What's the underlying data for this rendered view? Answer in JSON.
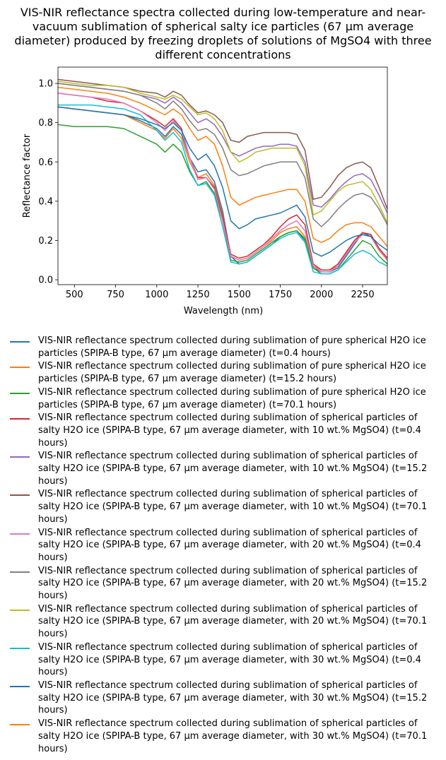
{
  "chart_data": {
    "type": "line",
    "title": "VIS-NIR reflectance spectra collected during low-temperature and near-vacuum sublimation of spherical salty ice particles (67 µm average diameter) produced by freezing droplets of solutions of MgSO4 with three different concentrations",
    "xlabel": "Wavelength (nm)",
    "ylabel": "Reflectance factor",
    "xlim": [
      400,
      2400
    ],
    "ylim": [
      -0.025,
      1.083
    ],
    "xticks": [
      500,
      750,
      1000,
      1250,
      1500,
      1750,
      2000,
      2250
    ],
    "yticks": [
      {
        "value": 0,
        "label": "0.0"
      },
      0.2,
      0.4,
      0.6,
      0.8,
      {
        "value": 1,
        "label": "1.0"
      }
    ],
    "x": [
      400,
      500,
      600,
      700,
      800,
      900,
      1000,
      1050,
      1100,
      1150,
      1200,
      1250,
      1300,
      1350,
      1400,
      1450,
      1500,
      1550,
      1600,
      1650,
      1700,
      1750,
      1800,
      1850,
      1900,
      1950,
      2000,
      2050,
      2100,
      2150,
      2200,
      2250,
      2300,
      2350,
      2400
    ],
    "series": [
      {
        "name": "VIS-NIR reflectance spectrum collected during sublimation of pure spherical H2O ice particles (SPIPA-B type, 67 µm average diameter) (t=0.4 hours)",
        "color": "#1f77b4",
        "values": [
          0.88,
          0.87,
          0.86,
          0.85,
          0.84,
          0.81,
          0.77,
          0.73,
          0.78,
          0.74,
          0.62,
          0.55,
          0.56,
          0.5,
          0.35,
          0.12,
          0.08,
          0.09,
          0.12,
          0.15,
          0.18,
          0.22,
          0.24,
          0.25,
          0.2,
          0.06,
          0.04,
          0.04,
          0.06,
          0.12,
          0.18,
          0.24,
          0.22,
          0.15,
          0.1
        ]
      },
      {
        "name": "VIS-NIR reflectance spectrum collected during sublimation of pure spherical H2O ice particles (SPIPA-B type, 67 µm average diameter) (t=15.2 hours)",
        "color": "#ff7f0e",
        "values": [
          0.88,
          0.87,
          0.86,
          0.85,
          0.84,
          0.8,
          0.76,
          0.72,
          0.77,
          0.72,
          0.6,
          0.52,
          0.54,
          0.48,
          0.33,
          0.12,
          0.1,
          0.11,
          0.14,
          0.17,
          0.2,
          0.24,
          0.26,
          0.27,
          0.22,
          0.07,
          0.05,
          0.05,
          0.07,
          0.13,
          0.19,
          0.24,
          0.23,
          0.16,
          0.11
        ]
      },
      {
        "name": "VIS-NIR reflectance spectrum collected during sublimation of pure spherical H2O ice particles (SPIPA-B type, 67 µm average diameter) (t=70.1 hours)",
        "color": "#2ca02c",
        "values": [
          0.79,
          0.78,
          0.78,
          0.78,
          0.77,
          0.73,
          0.69,
          0.65,
          0.69,
          0.65,
          0.55,
          0.48,
          0.5,
          0.44,
          0.3,
          0.1,
          0.09,
          0.1,
          0.13,
          0.16,
          0.19,
          0.22,
          0.24,
          0.25,
          0.21,
          0.06,
          0.03,
          0.03,
          0.05,
          0.1,
          0.15,
          0.2,
          0.18,
          0.12,
          0.08
        ]
      },
      {
        "name": "VIS-NIR reflectance spectrum collected during sublimation of spherical particles of salty H2O ice (SPIPA-B type, 67 µm average diameter, with 10 wt.% MgSO4) (t=0.4 hours)",
        "color": "#d62728",
        "values": [
          0.95,
          0.94,
          0.93,
          0.91,
          0.9,
          0.86,
          0.81,
          0.78,
          0.82,
          0.77,
          0.62,
          0.52,
          0.52,
          0.47,
          0.32,
          0.13,
          0.11,
          0.12,
          0.15,
          0.18,
          0.22,
          0.27,
          0.31,
          0.33,
          0.28,
          0.08,
          0.05,
          0.05,
          0.08,
          0.14,
          0.2,
          0.24,
          0.23,
          0.16,
          0.11
        ]
      },
      {
        "name": "VIS-NIR reflectance spectrum collected during sublimation of spherical particles of salty H2O ice (SPIPA-B type, 67 µm average diameter, with 10 wt.% MgSO4) (t=15.2 hours)",
        "color": "#9467bd",
        "values": [
          1.0,
          0.99,
          0.98,
          0.97,
          0.96,
          0.94,
          0.92,
          0.9,
          0.93,
          0.9,
          0.85,
          0.8,
          0.82,
          0.79,
          0.73,
          0.65,
          0.63,
          0.65,
          0.67,
          0.68,
          0.68,
          0.69,
          0.69,
          0.68,
          0.6,
          0.38,
          0.37,
          0.41,
          0.46,
          0.5,
          0.53,
          0.54,
          0.51,
          0.43,
          0.34
        ]
      },
      {
        "name": "VIS-NIR reflectance spectrum collected during sublimation of spherical particles of salty H2O ice (SPIPA-B type, 67 µm average diameter, with 10 wt.% MgSO4) (t=70.1 hours)",
        "color": "#8c564b",
        "values": [
          1.02,
          1.01,
          1.0,
          0.99,
          0.98,
          0.96,
          0.95,
          0.93,
          0.96,
          0.94,
          0.89,
          0.85,
          0.86,
          0.84,
          0.8,
          0.71,
          0.7,
          0.73,
          0.74,
          0.75,
          0.75,
          0.75,
          0.75,
          0.74,
          0.66,
          0.41,
          0.42,
          0.47,
          0.53,
          0.57,
          0.59,
          0.6,
          0.57,
          0.47,
          0.36
        ]
      },
      {
        "name": "VIS-NIR reflectance spectrum collected during sublimation of spherical particles of salty H2O ice (SPIPA-B type, 67 µm average diameter, with 20 wt.% MgSO4) (t=0.4 hours)",
        "color": "#e377c2",
        "values": [
          0.95,
          0.94,
          0.93,
          0.92,
          0.9,
          0.86,
          0.8,
          0.76,
          0.81,
          0.76,
          0.62,
          0.51,
          0.52,
          0.46,
          0.3,
          0.12,
          0.1,
          0.11,
          0.14,
          0.17,
          0.21,
          0.25,
          0.28,
          0.3,
          0.25,
          0.07,
          0.04,
          0.04,
          0.07,
          0.13,
          0.19,
          0.23,
          0.22,
          0.15,
          0.1
        ]
      },
      {
        "name": "VIS-NIR reflectance spectrum collected during sublimation of spherical particles of salty H2O ice (SPIPA-B type, 67 µm average diameter, with 20 wt.% MgSO4) (t=15.2 hours)",
        "color": "#7f7f7f",
        "values": [
          1.0,
          0.99,
          0.98,
          0.97,
          0.96,
          0.94,
          0.9,
          0.87,
          0.91,
          0.87,
          0.81,
          0.76,
          0.77,
          0.74,
          0.67,
          0.56,
          0.53,
          0.54,
          0.56,
          0.58,
          0.59,
          0.6,
          0.6,
          0.6,
          0.52,
          0.31,
          0.27,
          0.31,
          0.36,
          0.4,
          0.43,
          0.44,
          0.42,
          0.36,
          0.28
        ]
      },
      {
        "name": "VIS-NIR reflectance spectrum collected during sublimation of spherical particles of salty H2O ice (SPIPA-B type, 67 µm average diameter, with 20 wt.% MgSO4) (t=70.1 hours)",
        "color": "#bcbd22",
        "values": [
          1.01,
          1.0,
          0.99,
          0.99,
          0.98,
          0.95,
          0.93,
          0.92,
          0.94,
          0.92,
          0.88,
          0.84,
          0.85,
          0.82,
          0.76,
          0.65,
          0.6,
          0.62,
          0.65,
          0.66,
          0.67,
          0.67,
          0.67,
          0.67,
          0.58,
          0.33,
          0.35,
          0.4,
          0.45,
          0.48,
          0.49,
          0.5,
          0.46,
          0.38,
          0.29
        ]
      },
      {
        "name": "VIS-NIR reflectance spectrum collected during sublimation of spherical particles of salty H2O ice (SPIPA-B type, 67 µm average diameter, with 30 wt.% MgSO4) (t=0.4 hours)",
        "color": "#17becf",
        "values": [
          0.89,
          0.89,
          0.89,
          0.88,
          0.87,
          0.84,
          0.76,
          0.71,
          0.75,
          0.7,
          0.56,
          0.48,
          0.49,
          0.43,
          0.27,
          0.09,
          0.08,
          0.09,
          0.12,
          0.15,
          0.18,
          0.21,
          0.23,
          0.24,
          0.19,
          0.04,
          0.03,
          0.03,
          0.05,
          0.09,
          0.13,
          0.15,
          0.13,
          0.09,
          0.07
        ]
      },
      {
        "name": "VIS-NIR reflectance spectrum collected during sublimation of spherical particles of salty H2O ice (SPIPA-B type, 67 µm average diameter, with 30 wt.% MgSO4) (t=15.2 hours)",
        "color": "#1f77b4",
        "values": [
          0.88,
          0.87,
          0.86,
          0.85,
          0.84,
          0.82,
          0.79,
          0.77,
          0.8,
          0.76,
          0.67,
          0.61,
          0.64,
          0.58,
          0.47,
          0.3,
          0.26,
          0.28,
          0.31,
          0.32,
          0.33,
          0.34,
          0.36,
          0.38,
          0.32,
          0.14,
          0.12,
          0.14,
          0.17,
          0.2,
          0.22,
          0.23,
          0.22,
          0.18,
          0.15
        ]
      },
      {
        "name": "VIS-NIR reflectance spectrum collected during sublimation of spherical particles of salty H2O ice (SPIPA-B type, 67 µm average diameter, with 30 wt.% MgSO4) (t=70.1 hours)",
        "color": "#ff7f0e",
        "values": [
          0.98,
          0.97,
          0.96,
          0.95,
          0.93,
          0.9,
          0.86,
          0.84,
          0.87,
          0.84,
          0.77,
          0.71,
          0.73,
          0.69,
          0.58,
          0.42,
          0.38,
          0.4,
          0.42,
          0.43,
          0.44,
          0.45,
          0.46,
          0.46,
          0.4,
          0.21,
          0.19,
          0.21,
          0.25,
          0.28,
          0.29,
          0.29,
          0.27,
          0.22,
          0.17
        ]
      }
    ]
  }
}
